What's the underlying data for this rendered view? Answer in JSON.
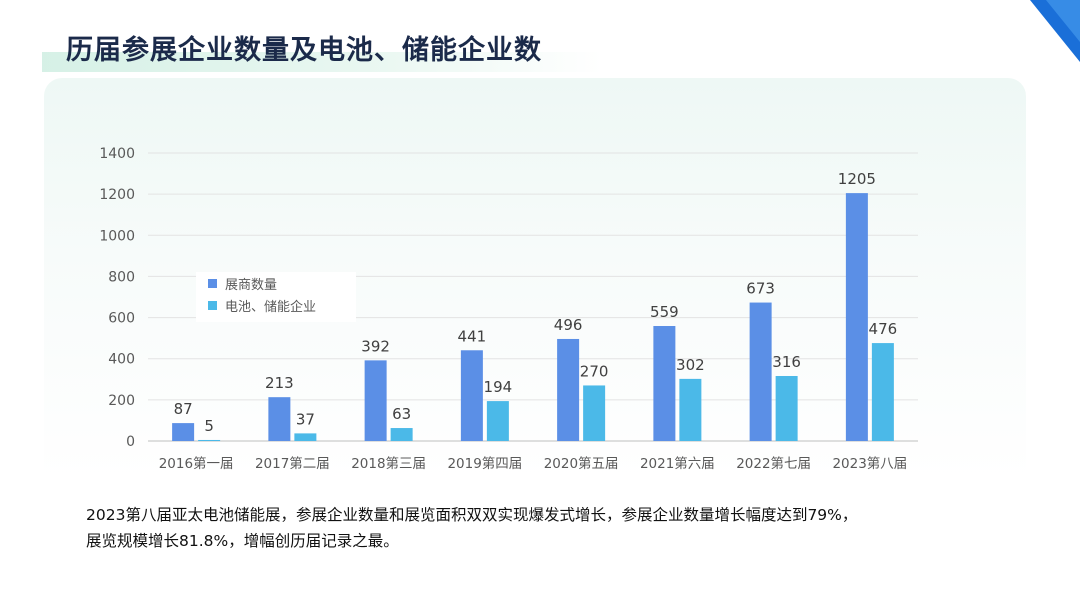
{
  "page": {
    "title": "历届参展企业数量及电池、储能企业数",
    "caption_lines": [
      "2023第八届亚太电池储能展，参展企业数量和展览面积双双实现爆发式增长，参展企业数量增长幅度达到79%，",
      "展览规模增长81.8%，增幅创历届记录之最。"
    ]
  },
  "colors": {
    "series_1": "#5b8fe6",
    "series_2": "#4bb9e8",
    "accent_blue": "#1a6fd8",
    "title_text": "#1b2a4a"
  },
  "chart_data": {
    "type": "bar",
    "categories": [
      "2016第一届",
      "2017第二届",
      "2018第三届",
      "2019第四届",
      "2020第五届",
      "2021第六届",
      "2022第七届",
      "2023第八届"
    ],
    "series": [
      {
        "name": "展商数量",
        "values": [
          87,
          213,
          392,
          441,
          496,
          559,
          673,
          1205
        ]
      },
      {
        "name": "电池、储能企业",
        "values": [
          5,
          37,
          63,
          194,
          270,
          302,
          316,
          476
        ]
      }
    ],
    "ylim": [
      0,
      1400
    ],
    "yticks": [
      0,
      200,
      400,
      600,
      800,
      1000,
      1200,
      1400
    ],
    "grid": true,
    "legend_position": "upper-left",
    "data_labels": true
  }
}
